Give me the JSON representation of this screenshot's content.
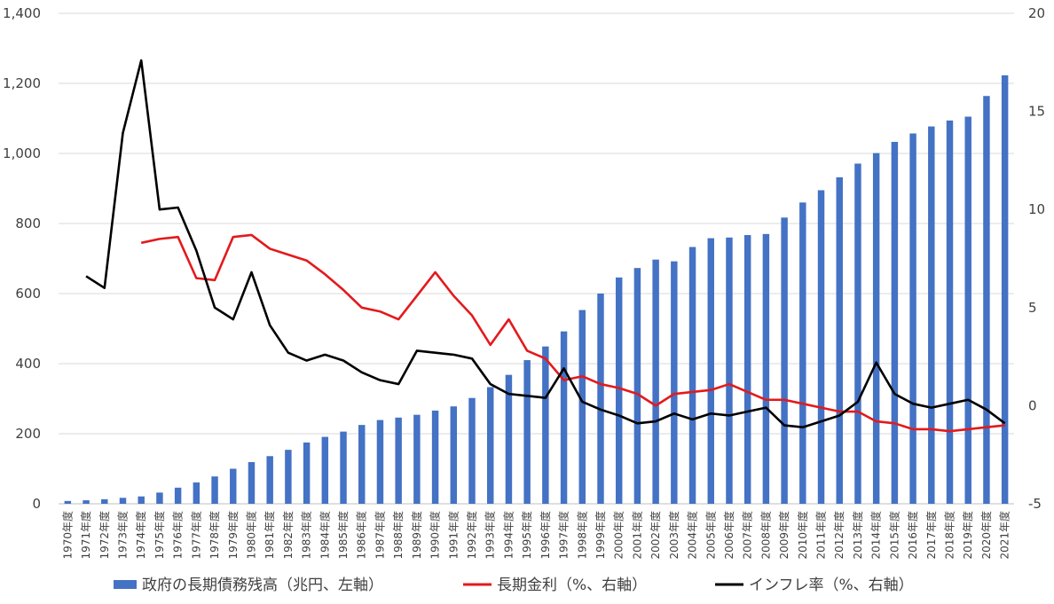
{
  "chart_data": {
    "type": "bar+line",
    "categories": [
      "1970年度",
      "1971年度",
      "1972年度",
      "1973年度",
      "1974年度",
      "1975年度",
      "1976年度",
      "1977年度",
      "1978年度",
      "1979年度",
      "1980年度",
      "1981年度",
      "1982年度",
      "1983年度",
      "1984年度",
      "1985年度",
      "1986年度",
      "1987年度",
      "1988年度",
      "1989年度",
      "1990年度",
      "1991年度",
      "1992年度",
      "1993年度",
      "1994年度",
      "1995年度",
      "1996年度",
      "1997年度",
      "1998年度",
      "1999年度",
      "2000年度",
      "2001年度",
      "2002年度",
      "2003年度",
      "2004年度",
      "2005年度",
      "2006年度",
      "2007年度",
      "2008年度",
      "2009年度",
      "2010年度",
      "2011年度",
      "2012年度",
      "2013年度",
      "2014年度",
      "2015年度",
      "2016年度",
      "2017年度",
      "2018年度",
      "2019年度",
      "2020年度",
      "2021年度"
    ],
    "series": [
      {
        "name": "政府の長期債務残高（兆円、左軸）",
        "type": "bar",
        "axis": "left",
        "color": "#4472C4",
        "values": [
          8,
          10,
          13,
          17,
          21,
          32,
          46,
          61,
          78,
          100,
          119,
          136,
          154,
          175,
          191,
          206,
          225,
          239,
          246,
          254,
          266,
          278,
          302,
          333,
          368,
          410,
          449,
          492,
          553,
          600,
          646,
          673,
          697,
          692,
          733,
          758,
          760,
          767,
          770,
          817,
          860,
          895,
          932,
          971,
          1001,
          1033,
          1057,
          1077,
          1094,
          1105,
          1164,
          1223
        ]
      },
      {
        "name": "長期金利（%、右軸）",
        "type": "line",
        "axis": "right",
        "color": "#E31A1C",
        "values": [
          null,
          null,
          null,
          null,
          8.3,
          8.5,
          8.6,
          6.5,
          6.4,
          8.6,
          8.7,
          8.0,
          7.7,
          7.4,
          6.7,
          5.9,
          5.0,
          4.8,
          4.4,
          5.6,
          6.8,
          5.6,
          4.6,
          3.1,
          4.4,
          2.8,
          2.4,
          1.3,
          1.5,
          1.1,
          0.9,
          0.6,
          0.0,
          0.6,
          0.7,
          0.8,
          1.1,
          0.7,
          0.3,
          0.3,
          0.1,
          -0.1,
          -0.3,
          -0.3,
          -0.8,
          -0.9,
          -1.2,
          -1.2,
          -1.3,
          -1.2,
          -1.1,
          -1.0
        ]
      },
      {
        "name": "インフレ率（%、右軸）",
        "type": "line",
        "axis": "right",
        "color": "#000000",
        "values": [
          null,
          6.6,
          6.0,
          13.9,
          17.6,
          10.0,
          10.1,
          7.9,
          5.0,
          4.4,
          6.8,
          4.1,
          2.7,
          2.3,
          2.6,
          2.3,
          1.7,
          1.3,
          1.1,
          2.8,
          2.7,
          2.6,
          2.4,
          1.1,
          0.6,
          0.5,
          0.4,
          1.9,
          0.2,
          -0.2,
          -0.5,
          -0.9,
          -0.8,
          -0.4,
          -0.7,
          -0.4,
          -0.5,
          -0.3,
          -0.1,
          -1.0,
          -1.1,
          -0.8,
          -0.5,
          0.2,
          2.2,
          0.6,
          0.1,
          -0.1,
          0.1,
          0.3,
          -0.2,
          -0.9
        ]
      }
    ],
    "y_left": {
      "min": 0,
      "max": 1400,
      "step": 200,
      "tick_labels": [
        "0",
        "200",
        "400",
        "600",
        "800",
        "1,000",
        "1,200",
        "1,400"
      ]
    },
    "y_right": {
      "min": -5,
      "max": 20,
      "step": 5,
      "tick_labels": [
        "-5",
        "0",
        "5",
        "10",
        "15",
        "20"
      ]
    },
    "grid": "horizontal",
    "legend": "bottom",
    "title": "",
    "xlabel": "",
    "ylabel": ""
  }
}
